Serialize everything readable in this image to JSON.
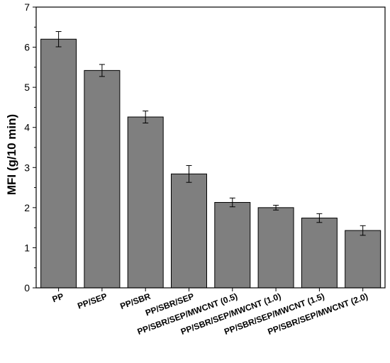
{
  "chart_data": {
    "type": "bar",
    "title": "",
    "xlabel": "",
    "ylabel": "MFI (g/10 min)",
    "ylim": [
      0,
      7
    ],
    "yticks": [
      0,
      1,
      2,
      3,
      4,
      5,
      6,
      7
    ],
    "categories": [
      "PP",
      "PP/SEP",
      "PP/SBR",
      "PP/SBR/SEP",
      "PP/SBR/SEP/MWCNT (0.5)",
      "PP/SBR/SEP/MWCNT (1.0)",
      "PP/SBR/SEP/MWCNT (1.5)",
      "PP/SBR/SEP/MWCNT (2.0)"
    ],
    "values": [
      6.2,
      5.42,
      4.26,
      2.84,
      2.13,
      2.0,
      1.74,
      1.43
    ],
    "errors": [
      0.19,
      0.15,
      0.15,
      0.21,
      0.11,
      0.06,
      0.11,
      0.12
    ],
    "bar_color": "#7f7f7f",
    "grid": false,
    "legend": "none"
  }
}
